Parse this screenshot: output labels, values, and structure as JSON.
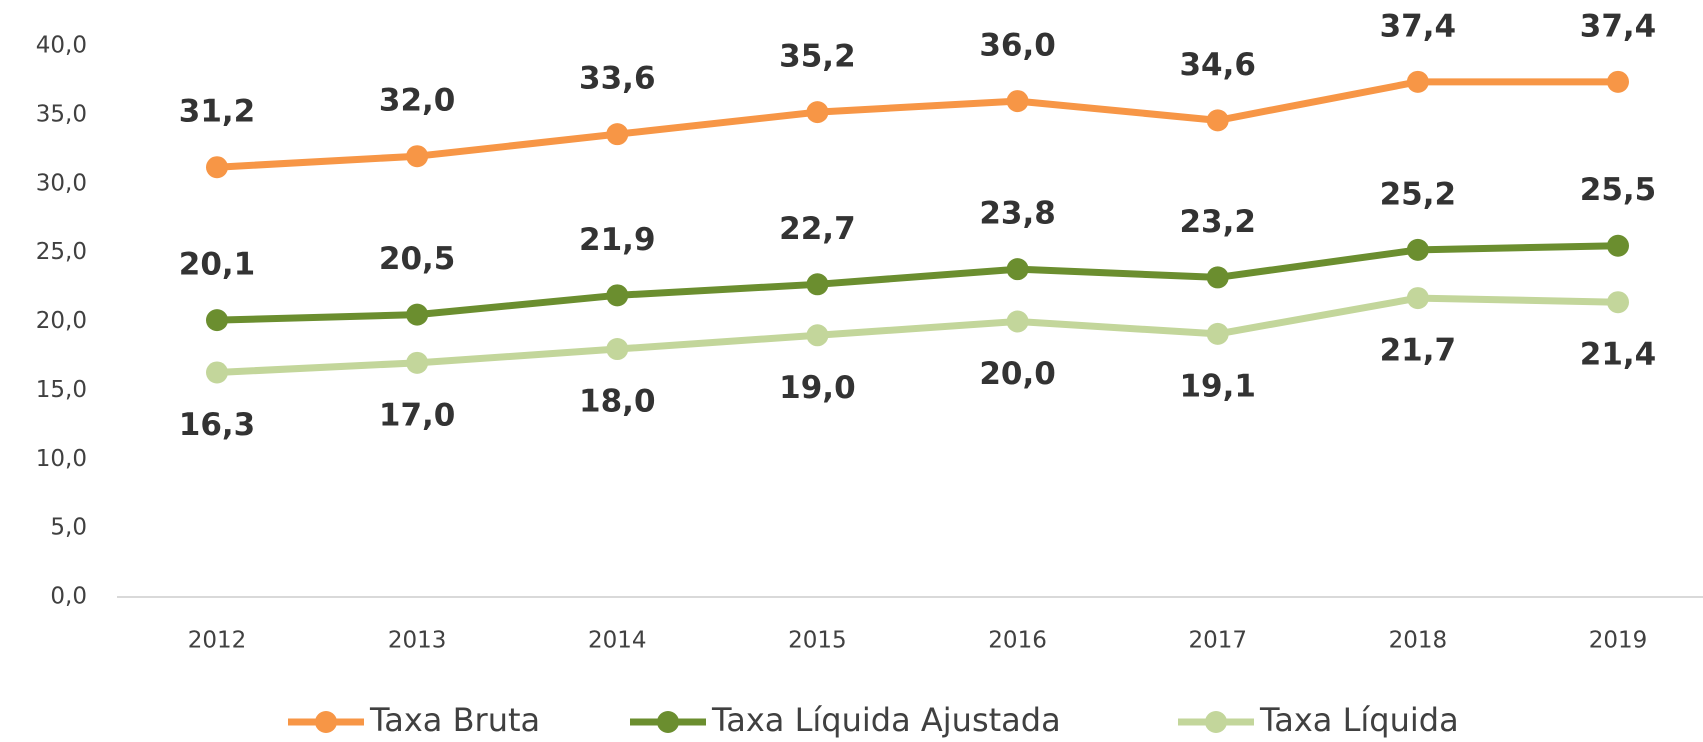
{
  "chart_data": {
    "type": "line",
    "categories": [
      "2012",
      "2013",
      "2014",
      "2015",
      "2016",
      "2017",
      "2018",
      "2019"
    ],
    "series": [
      {
        "name": "Taxa Bruta",
        "color": "#f79646",
        "label_position": "above",
        "values": [
          31.2,
          32.0,
          33.6,
          35.2,
          36.0,
          34.6,
          37.4,
          37.4
        ],
        "value_labels": [
          "31,2",
          "32,0",
          "33,6",
          "35,2",
          "36,0",
          "34,6",
          "37,4",
          "37,4"
        ]
      },
      {
        "name": "Taxa Líquida Ajustada",
        "color": "#6b8e2f",
        "label_position": "above",
        "values": [
          20.1,
          20.5,
          21.9,
          22.7,
          23.8,
          23.2,
          25.2,
          25.5
        ],
        "value_labels": [
          "20,1",
          "20,5",
          "21,9",
          "22,7",
          "23,8",
          "23,2",
          "25,2",
          "25,5"
        ]
      },
      {
        "name": "Taxa Líquida",
        "color": "#c3d69b",
        "label_position": "below",
        "values": [
          16.3,
          17.0,
          18.0,
          19.0,
          20.0,
          19.1,
          21.7,
          21.4
        ],
        "value_labels": [
          "16,3",
          "17,0",
          "18,0",
          "19,0",
          "20,0",
          "19,1",
          "21,7",
          "21,4"
        ]
      }
    ],
    "ylim": [
      0,
      40
    ],
    "yticks": [
      {
        "value": 0,
        "label": "0,0"
      },
      {
        "value": 5,
        "label": "5,0"
      },
      {
        "value": 10,
        "label": "10,0"
      },
      {
        "value": 15,
        "label": "15,0"
      },
      {
        "value": 20,
        "label": "20,0"
      },
      {
        "value": 25,
        "label": "25,0"
      },
      {
        "value": 30,
        "label": "30,0"
      },
      {
        "value": 35,
        "label": "35,0"
      },
      {
        "value": 40,
        "label": "40,0"
      }
    ],
    "grid": false,
    "legend": "bottom"
  }
}
